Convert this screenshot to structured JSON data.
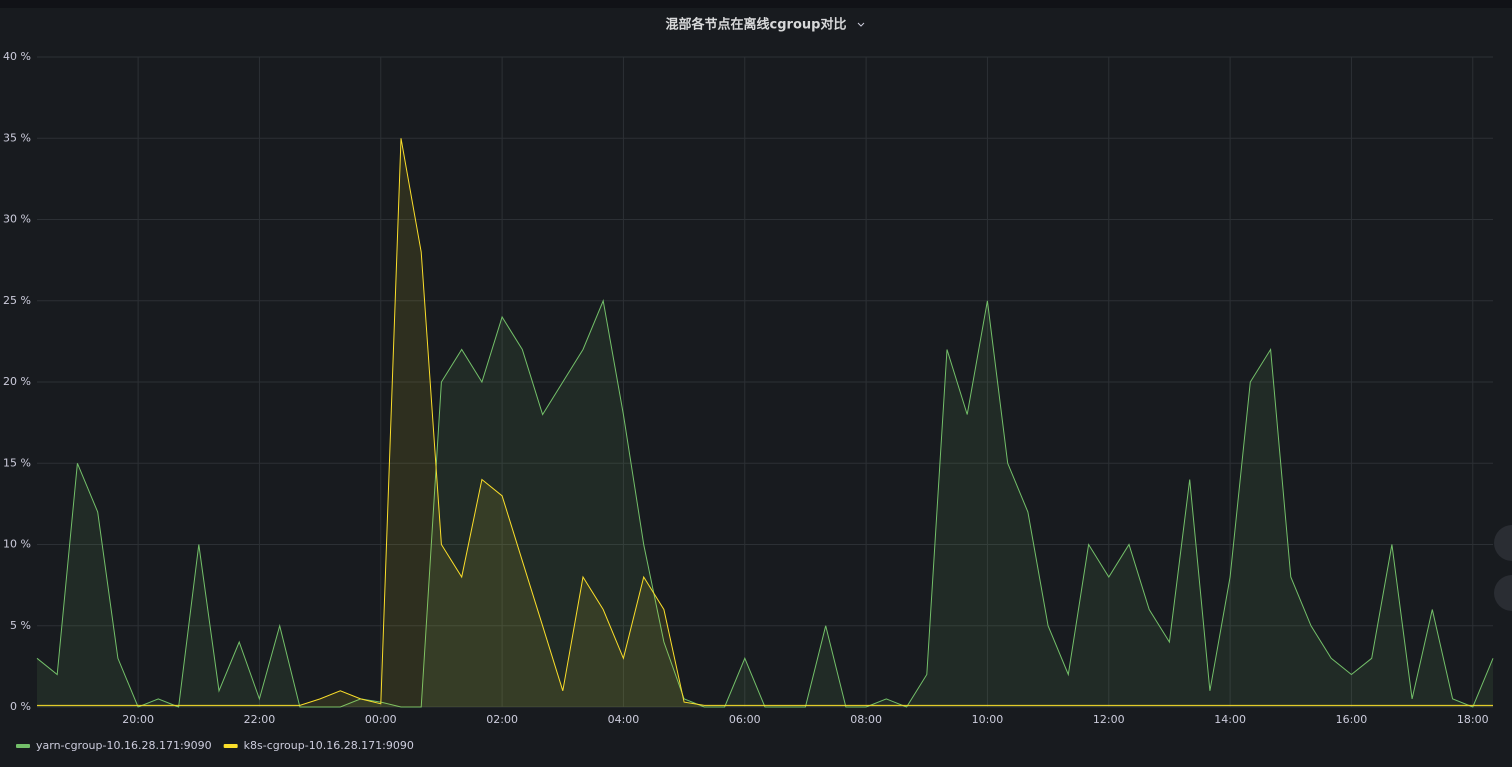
{
  "chart_data": {
    "type": "line",
    "title": "混部各节点在离线cgroup对比",
    "categories": [
      "18:20",
      "18:40",
      "19:00",
      "19:20",
      "19:40",
      "20:00",
      "20:20",
      "20:40",
      "21:00",
      "21:20",
      "21:40",
      "22:00",
      "22:20",
      "22:40",
      "23:00",
      "23:20",
      "23:40",
      "00:00",
      "00:20",
      "00:40",
      "01:00",
      "01:20",
      "01:40",
      "02:00",
      "02:20",
      "02:40",
      "03:00",
      "03:20",
      "03:40",
      "04:00",
      "04:20",
      "04:40",
      "05:00",
      "05:20",
      "05:40",
      "06:00",
      "06:20",
      "06:40",
      "07:00",
      "07:20",
      "07:40",
      "08:00",
      "08:20",
      "08:40",
      "09:00",
      "09:20",
      "09:40",
      "10:00",
      "10:20",
      "10:40",
      "11:00",
      "11:20",
      "11:40",
      "12:00",
      "12:20",
      "12:40",
      "13:00",
      "13:20",
      "13:40",
      "14:00",
      "14:20",
      "14:40",
      "15:00",
      "15:20",
      "15:40",
      "16:00",
      "16:20",
      "16:40",
      "17:00",
      "17:20",
      "17:40",
      "18:00",
      "18:20"
    ],
    "series": [
      {
        "name": "yarn-cgroup-10.16.28.171:9090",
        "color": "#73bf69",
        "values": [
          3,
          2,
          15,
          12,
          3,
          0,
          0.5,
          0,
          10,
          1,
          4,
          0.5,
          5,
          0,
          0,
          0,
          0.5,
          0.3,
          0,
          0,
          20,
          22,
          20,
          24,
          22,
          18,
          20,
          22,
          25,
          18,
          10,
          4,
          0.5,
          0,
          0,
          3,
          0,
          0,
          0,
          5,
          0,
          0,
          0.5,
          0,
          2,
          22,
          18,
          25,
          15,
          12,
          5,
          2,
          10,
          8,
          10,
          6,
          4,
          14,
          1,
          8,
          20,
          22,
          8,
          5,
          3,
          2,
          3,
          10,
          0.5,
          6,
          0.5,
          0,
          3
        ]
      },
      {
        "name": "k8s-cgroup-10.16.28.171:9090",
        "color": "#fade2a",
        "values": [
          0.1,
          0.1,
          0.1,
          0.1,
          0.1,
          0.1,
          0.1,
          0.1,
          0.1,
          0.1,
          0.1,
          0.1,
          0.1,
          0.1,
          0.5,
          1,
          0.5,
          0.2,
          35,
          28,
          10,
          8,
          14,
          13,
          9,
          5,
          1,
          8,
          6,
          3,
          8,
          6,
          0.3,
          0.1,
          0.1,
          0.1,
          0.1,
          0.1,
          0.1,
          0.1,
          0.1,
          0.1,
          0.1,
          0.1,
          0.1,
          0.1,
          0.1,
          0.1,
          0.1,
          0.1,
          0.1,
          0.1,
          0.1,
          0.1,
          0.1,
          0.1,
          0.1,
          0.1,
          0.1,
          0.1,
          0.1,
          0.1,
          0.1,
          0.1,
          0.1,
          0.1,
          0.1,
          0.1,
          0.1,
          0.1,
          0.1,
          0.1,
          0.1
        ]
      }
    ],
    "xticks": [
      "20:00",
      "22:00",
      "00:00",
      "02:00",
      "04:00",
      "06:00",
      "08:00",
      "10:00",
      "12:00",
      "14:00",
      "16:00",
      "18:00"
    ],
    "ylim": [
      0,
      40
    ],
    "yticks": [
      {
        "value": 0,
        "label": "0 %"
      },
      {
        "value": 5,
        "label": "5 %"
      },
      {
        "value": 10,
        "label": "10 %"
      },
      {
        "value": 15,
        "label": "15 %"
      },
      {
        "value": 20,
        "label": "20 %"
      },
      {
        "value": 25,
        "label": "25 %"
      },
      {
        "value": 30,
        "label": "30 %"
      },
      {
        "value": 35,
        "label": "35 %"
      },
      {
        "value": 40,
        "label": "40 %"
      }
    ],
    "grid": true,
    "legend": "bottom-left"
  }
}
